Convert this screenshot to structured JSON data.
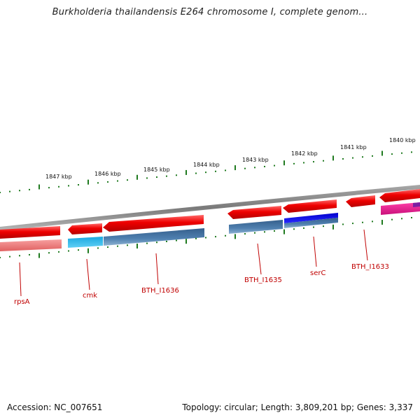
{
  "title": "Burkholderia thailandensis E264 chromosome I, complete genom...",
  "footer": {
    "accession": "Accession: NC_007651",
    "summary": "Topology: circular; Length: 3,809,201 bp; Genes: 3,337"
  },
  "colors": {
    "backbone": "#8c8c8c",
    "tick": "#1f7a1f",
    "label": "#c00000",
    "forward_gene": "#e60000",
    "rpsA_reverse": "#f07878",
    "cds_blue": "#4a78a8",
    "cmk_cyan": "#22b4e6",
    "serC_blue": "#0000e6",
    "magenta": "#e0208c",
    "purple": "#7a1fa2"
  },
  "scale_ticks": [
    "1847 kbp",
    "1846 kbp",
    "1845 kbp",
    "1844 kbp",
    "1843 kbp",
    "1842 kbp",
    "1841 kbp",
    "1840 kbp"
  ],
  "gene_labels": [
    "rpsA",
    "cmk",
    "BTH_I1636",
    "BTH_I1635",
    "serC",
    "BTH_I1633"
  ]
}
